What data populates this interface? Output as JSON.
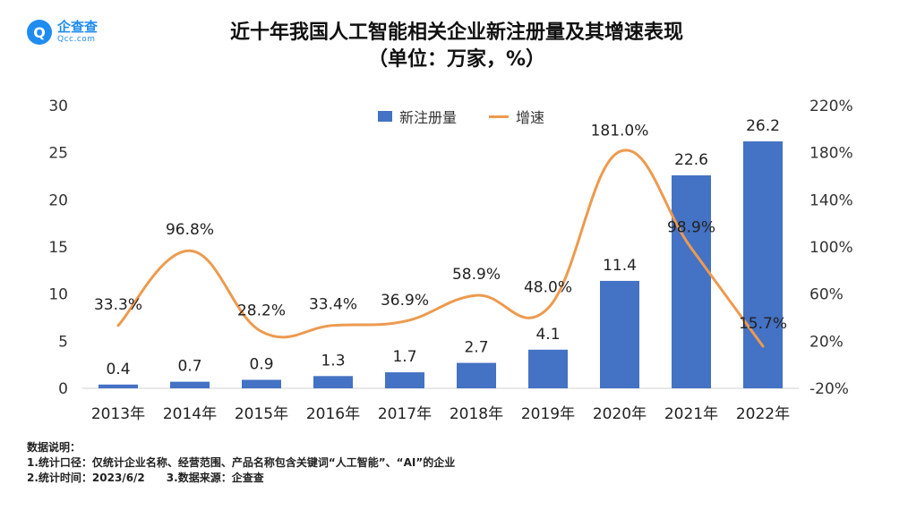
{
  "brand": {
    "name": "企查查",
    "domain": "Qcc.com",
    "icon": "qcc-logo-icon"
  },
  "title_line1": "近十年我国人工智能相关企业新注册量及其增速表现",
  "title_line2": "（单位：万家，%）",
  "chart_data": {
    "type": "bar",
    "title": "近十年我国人工智能相关企业新注册量及其增速表现（单位：万家，%）",
    "categories": [
      "2013年",
      "2014年",
      "2015年",
      "2016年",
      "2017年",
      "2018年",
      "2019年",
      "2020年",
      "2021年",
      "2022年"
    ],
    "series": [
      {
        "name": "新注册量",
        "kind": "bar",
        "axis": "left",
        "color": "#4472c4",
        "values": [
          0.4,
          0.7,
          0.9,
          1.3,
          1.7,
          2.7,
          4.1,
          11.4,
          22.6,
          26.2
        ],
        "labels": [
          "0.4",
          "0.7",
          "0.9",
          "1.3",
          "1.7",
          "2.7",
          "4.1",
          "11.4",
          "22.6",
          "26.2"
        ]
      },
      {
        "name": "增速",
        "kind": "line",
        "axis": "right",
        "color": "#ed9a4f",
        "smooth": true,
        "values": [
          33.3,
          96.8,
          28.2,
          33.4,
          36.9,
          58.9,
          48.0,
          181.0,
          98.9,
          15.7
        ],
        "labels": [
          "33.3%",
          "96.8%",
          "28.2%",
          "33.4%",
          "36.9%",
          "58.9%",
          "48.0%",
          "181.0%",
          "98.9%",
          "15.7%"
        ]
      }
    ],
    "y_left": {
      "min": 0,
      "max": 30,
      "ticks": [
        "0",
        "5",
        "10",
        "15",
        "20",
        "25",
        "30"
      ],
      "tick_values": [
        0,
        5,
        10,
        15,
        20,
        25,
        30
      ]
    },
    "y_right": {
      "min": -20,
      "max": 220,
      "ticks": [
        "-20%",
        "20%",
        "60%",
        "100%",
        "140%",
        "180%",
        "220%"
      ],
      "tick_values": [
        -20,
        20,
        60,
        100,
        140,
        180,
        220
      ]
    },
    "legend": "top-center",
    "grid": false
  },
  "notes": {
    "heading": "数据说明：",
    "line1": "1.统计口径：仅统计企业名称、经营范围、产品名称包含关键词“人工智能”、“AI”的企业",
    "line2a": "2.统计时间：2023/6/2",
    "line2b": "3.数据来源：企查查"
  }
}
